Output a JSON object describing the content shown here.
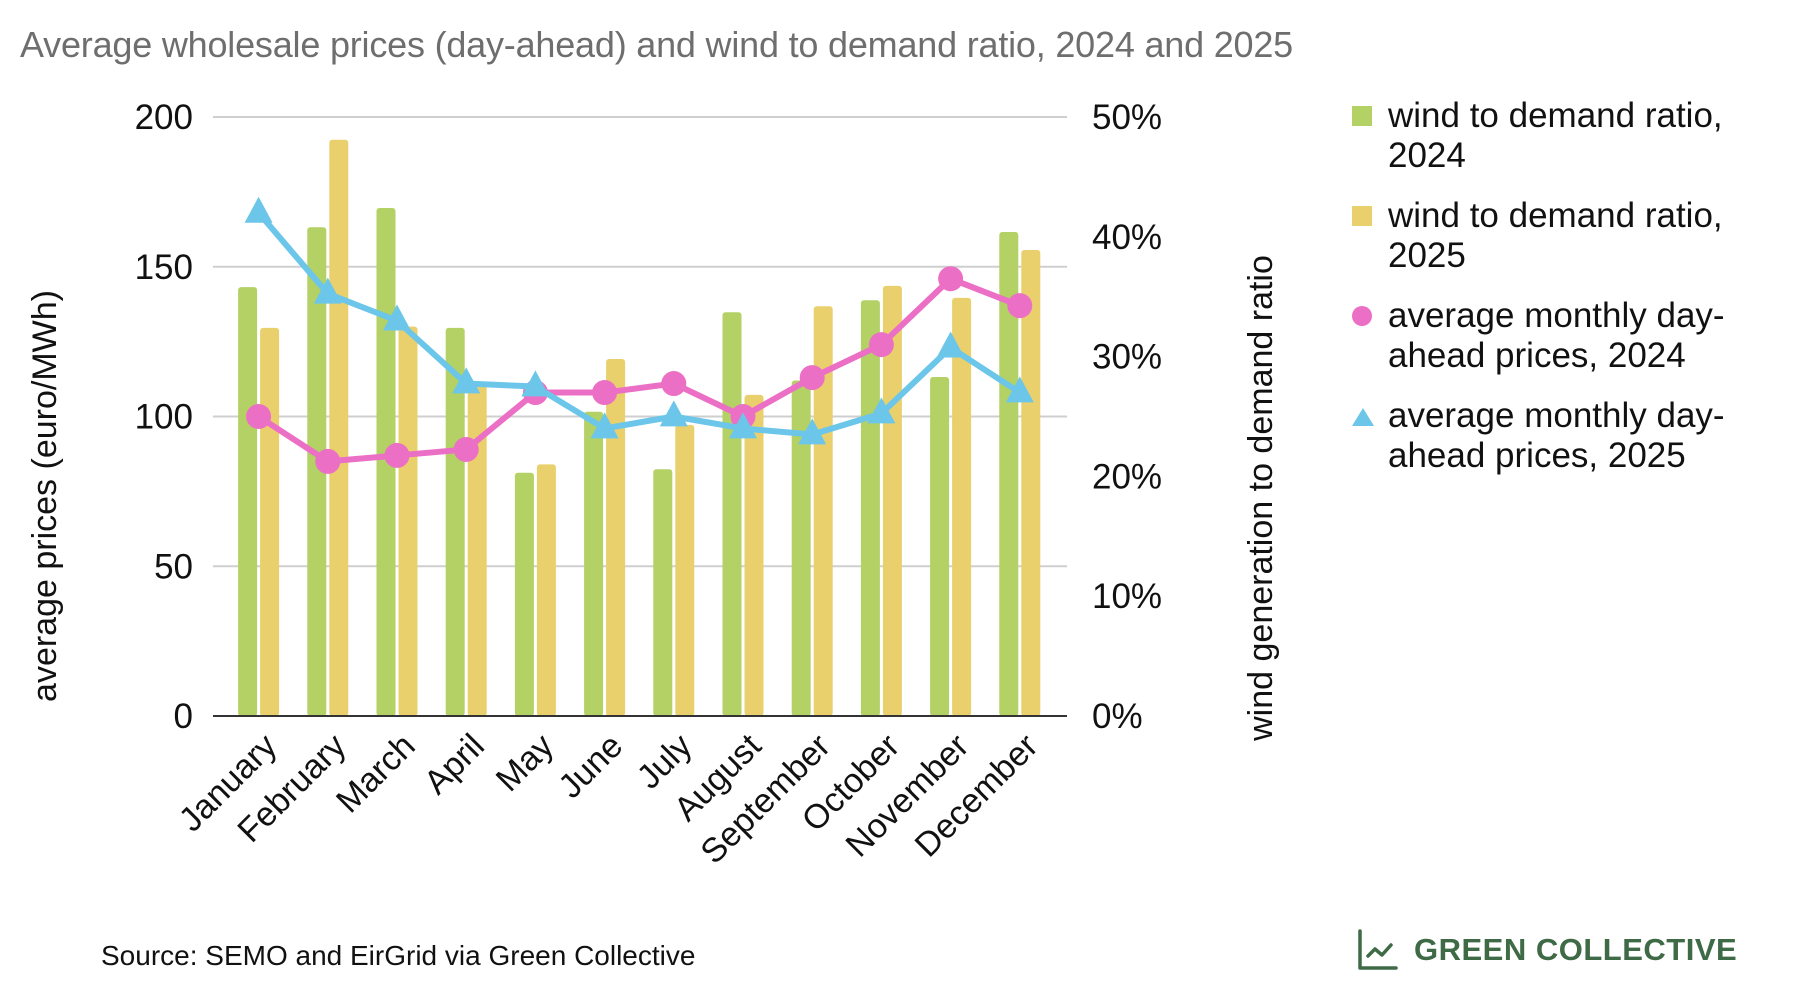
{
  "title": "Average wholesale prices (day-ahead) and wind to demand ratio, 2024 and 2025",
  "source": "Source: SEMO and EirGrid via Green Collective",
  "logo": {
    "icon": "line-chart-icon",
    "text": "GREEN COLLECTIVE",
    "color": "#3e6a45"
  },
  "chart_data": {
    "type": "bar",
    "title": "Average wholesale prices (day-ahead) and wind to demand ratio, 2024 and 2025",
    "categories": [
      "January",
      "February",
      "March",
      "April",
      "May",
      "June",
      "July",
      "August",
      "September",
      "October",
      "November",
      "December"
    ],
    "xlabel": "",
    "ylabel": "average prices (euro/MWh)",
    "y2label": "wind generation to demand ratio",
    "ylim": [
      0,
      200
    ],
    "yticks": [
      0,
      50,
      100,
      150,
      200
    ],
    "y2lim": [
      0,
      50
    ],
    "y2ticks": [
      "0%",
      "10%",
      "20%",
      "30%",
      "40%",
      "50%"
    ],
    "y2tick_values": [
      0,
      10,
      20,
      30,
      40,
      50
    ],
    "grid": true,
    "legend_position": "right",
    "series": [
      {
        "name": "wind to demand ratio, 2024",
        "type": "bar",
        "axis": "right",
        "unit": "%",
        "color": "#b3d164",
        "marker": "square",
        "values": [
          35.8,
          40.8,
          42.4,
          32.4,
          20.3,
          25.4,
          20.6,
          33.7,
          28.0,
          34.7,
          28.3,
          40.4
        ]
      },
      {
        "name": "wind to demand ratio, 2025",
        "type": "bar",
        "axis": "right",
        "unit": "%",
        "color": "#e9d06d",
        "marker": "square",
        "values": [
          32.4,
          48.1,
          32.5,
          27.6,
          21.0,
          29.8,
          24.3,
          26.8,
          34.2,
          35.9,
          34.9,
          38.9
        ]
      },
      {
        "name": "average monthly day-ahead prices, 2024",
        "type": "line",
        "axis": "left",
        "unit": "euro/MWh",
        "color": "#ec6fc6",
        "marker": "circle",
        "values": [
          100,
          85,
          87,
          89,
          108,
          108,
          111,
          100,
          113,
          124,
          146,
          137
        ]
      },
      {
        "name": "average monthly day-ahead prices, 2025",
        "type": "line",
        "axis": "left",
        "unit": "euro/MWh",
        "color": "#6cc6e9",
        "marker": "triangle",
        "values": [
          168,
          141,
          132,
          111,
          110,
          96,
          100,
          96,
          94,
          101,
          123,
          108
        ]
      }
    ]
  },
  "legend": [
    {
      "label": "wind to demand ratio, 2024",
      "color": "#b3d164",
      "shape": "square"
    },
    {
      "label": "wind to demand ratio, 2025",
      "color": "#e9d06d",
      "shape": "square"
    },
    {
      "label": "average monthly day-ahead prices, 2024",
      "color": "#ec6fc6",
      "shape": "circle"
    },
    {
      "label": "average monthly day-ahead prices, 2025",
      "color": "#6cc6e9",
      "shape": "triangle"
    }
  ]
}
